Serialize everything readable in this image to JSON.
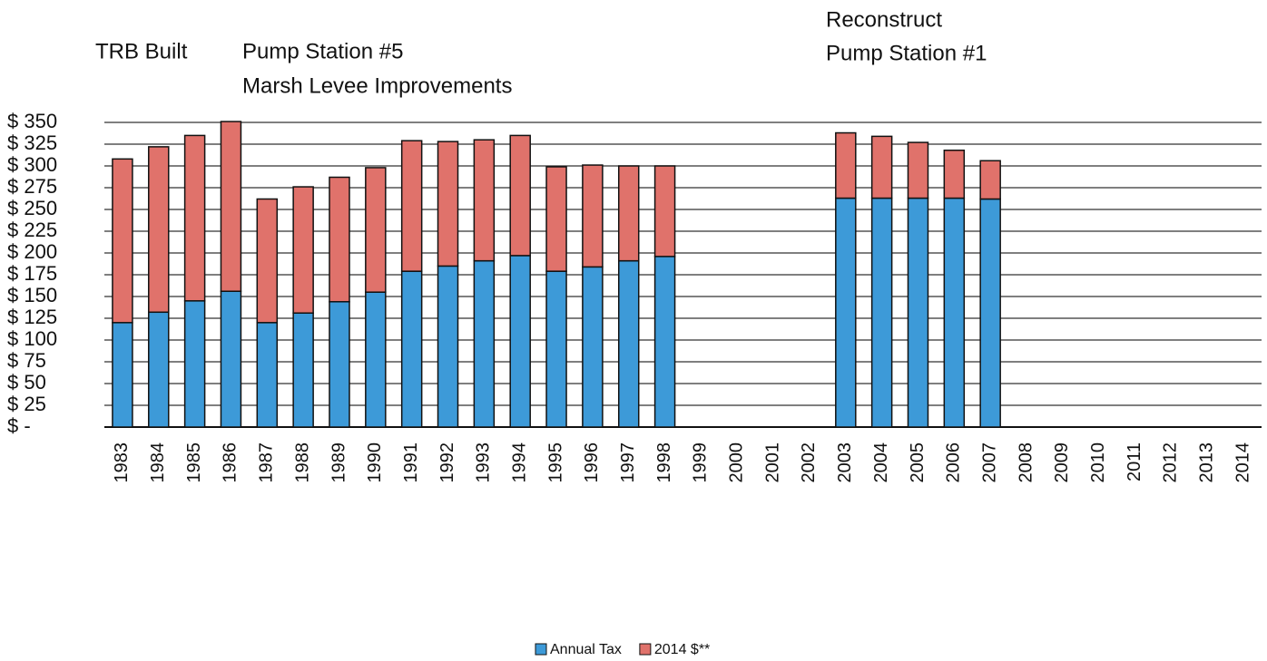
{
  "chart_data": {
    "type": "stacked_bar",
    "annotations": [
      "TRB Built",
      "Pump Station #5",
      "Marsh Levee Improvements",
      "Reconstruct",
      "Pump Station #1"
    ],
    "categories": [
      "1983",
      "1984",
      "1985",
      "1986",
      "1987",
      "1988",
      "1989",
      "1990",
      "1991",
      "1992",
      "1993",
      "1994",
      "1995",
      "1996",
      "1997",
      "1998",
      "1999",
      "2000",
      "2001",
      "2002",
      "2003",
      "2004",
      "2005",
      "2006",
      "2007",
      "2008",
      "2009",
      "2010",
      "2011",
      "2012",
      "2013",
      "2014"
    ],
    "series": [
      {
        "name": "Annual Tax",
        "color": "#3d9ad8",
        "values": [
          120,
          132,
          145,
          156,
          120,
          131,
          144,
          155,
          179,
          185,
          191,
          197,
          179,
          184,
          191,
          196,
          null,
          null,
          null,
          null,
          263,
          263,
          263,
          263,
          262,
          null,
          null,
          null,
          null,
          null,
          null,
          null
        ]
      },
      {
        "name": "2014 $**",
        "color": "#e0726b",
        "values": [
          188,
          190,
          190,
          195,
          142,
          145,
          143,
          143,
          150,
          143,
          139,
          138,
          120,
          117,
          109,
          104,
          null,
          null,
          null,
          null,
          75,
          71,
          64,
          55,
          44,
          null,
          null,
          null,
          null,
          null,
          null,
          null
        ]
      }
    ],
    "ylim": [
      0,
      350
    ],
    "yticks": [
      {
        "value": 0,
        "label": "$ -"
      },
      {
        "value": 25,
        "label": "$ 25"
      },
      {
        "value": 50,
        "label": "$ 50"
      },
      {
        "value": 75,
        "label": "$ 75"
      },
      {
        "value": 100,
        "label": "$ 100"
      },
      {
        "value": 125,
        "label": "$ 125"
      },
      {
        "value": 150,
        "label": "$ 150"
      },
      {
        "value": 175,
        "label": "$ 175"
      },
      {
        "value": 200,
        "label": "$ 200"
      },
      {
        "value": 225,
        "label": "$ 225"
      },
      {
        "value": 250,
        "label": "$ 250"
      },
      {
        "value": 275,
        "label": "$ 275"
      },
      {
        "value": 300,
        "label": "$ 300"
      },
      {
        "value": 325,
        "label": "$ 325"
      },
      {
        "value": 350,
        "label": "$ 350"
      }
    ],
    "grid": true,
    "legend": "bottom"
  }
}
